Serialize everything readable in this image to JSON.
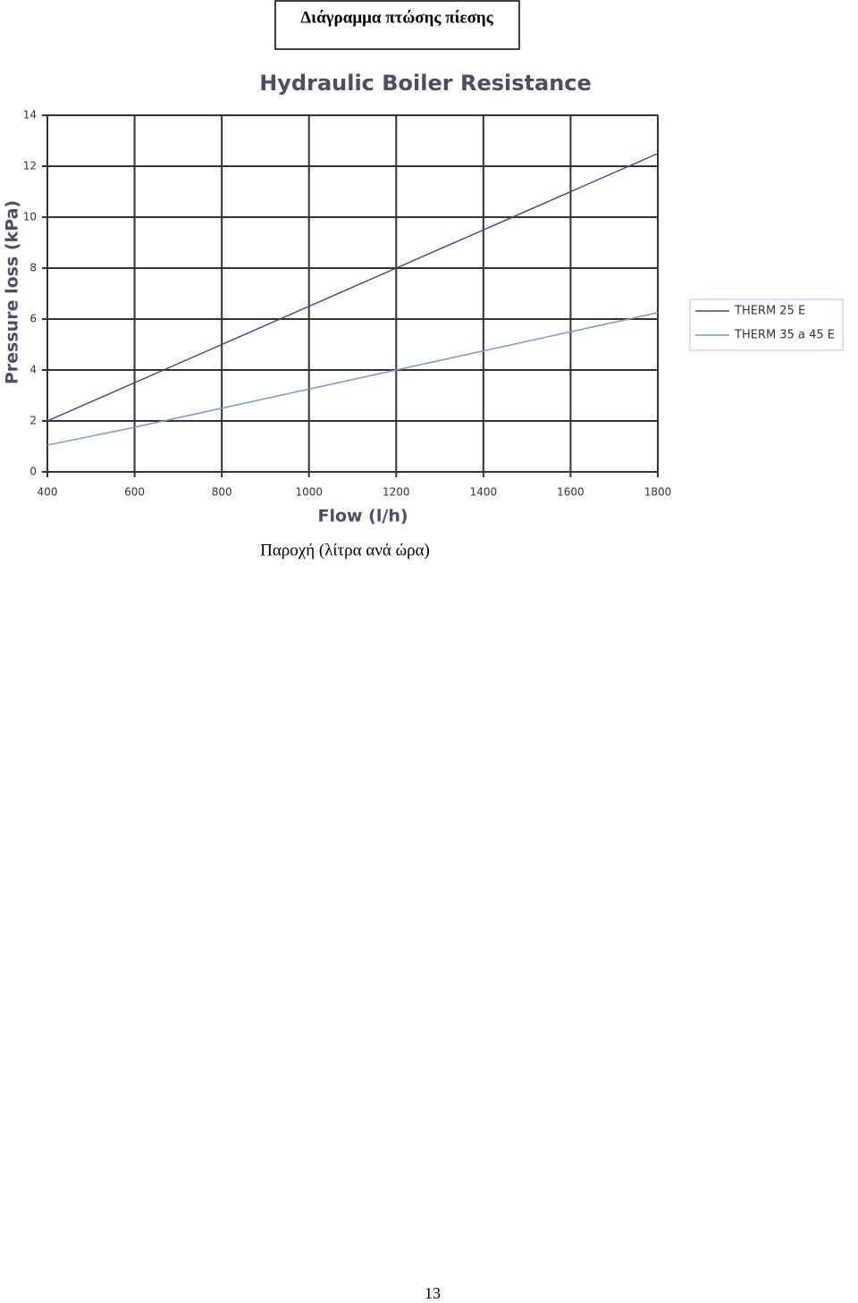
{
  "header_title": "Διάγραμμα πτώσης πίεσης",
  "chart_data": {
    "type": "line",
    "title": "Hydraulic Boiler Resistance",
    "x_label": "Flow (l/h)",
    "y_label": "Pressure loss (kPa)",
    "x": [
      400,
      600,
      800,
      1000,
      1200,
      1400,
      1600,
      1800
    ],
    "series": [
      {
        "name": "THERM 25 E",
        "color": "#3a4a8c",
        "values": [
          2,
          3.5,
          5,
          6.5,
          8,
          9.5,
          11,
          12.5
        ]
      },
      {
        "name": "THERM 35 a 45 E",
        "color": "#7f95c8",
        "values": [
          1.05,
          1.75,
          2.5,
          3.25,
          4,
          4.75,
          5.5,
          6.25
        ]
      }
    ],
    "xlim": [
      400,
      1800
    ],
    "xticks": [
      400,
      600,
      800,
      1000,
      1200,
      1400,
      1600,
      1800
    ],
    "ylim": [
      0,
      14
    ],
    "yticks": [
      0,
      2,
      4,
      6,
      8,
      10,
      12,
      14
    ],
    "grid": true,
    "legend": "right"
  },
  "caption": "Παροχή (λίτρα ανά ώρα)",
  "page_number": "13"
}
